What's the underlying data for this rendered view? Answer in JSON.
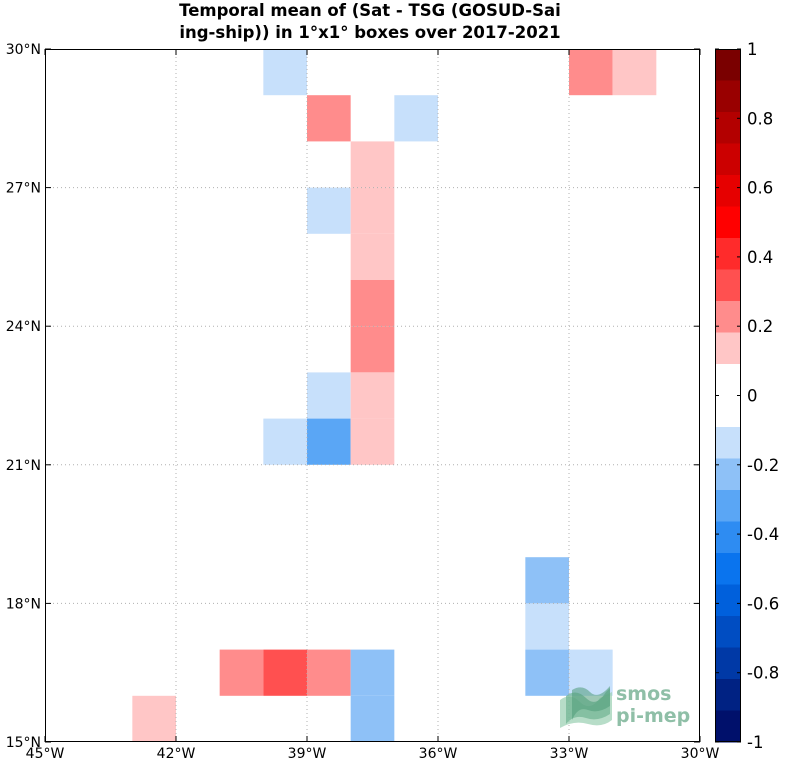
{
  "chart_data": {
    "type": "heatmap",
    "title_lines": [
      "Temporal mean of (Sat - TSG (GOSUD-Sai",
      "ing-ship)) in 1°x1° boxes over 2017-2021"
    ],
    "x_ticks": [
      {
        "value": -45,
        "label": "45°W"
      },
      {
        "value": -42,
        "label": "42°W"
      },
      {
        "value": -39,
        "label": "39°W"
      },
      {
        "value": -36,
        "label": "36°W"
      },
      {
        "value": -33,
        "label": "33°W"
      },
      {
        "value": -30,
        "label": "30°W"
      }
    ],
    "y_ticks": [
      {
        "value": 15,
        "label": "15°N"
      },
      {
        "value": 18,
        "label": "18°N"
      },
      {
        "value": 21,
        "label": "21°N"
      },
      {
        "value": 24,
        "label": "24°N"
      },
      {
        "value": 27,
        "label": "27°N"
      },
      {
        "value": 30,
        "label": "30°N"
      }
    ],
    "xlim": [
      -45,
      -30
    ],
    "ylim": [
      15,
      30
    ],
    "grid": true,
    "cells": [
      {
        "lon": -40,
        "lat": 29,
        "value": -0.15
      },
      {
        "lon": -33,
        "lat": 29,
        "value": 0.25
      },
      {
        "lon": -32,
        "lat": 29,
        "value": 0.15
      },
      {
        "lon": -39,
        "lat": 28,
        "value": 0.25
      },
      {
        "lon": -37,
        "lat": 28,
        "value": -0.15
      },
      {
        "lon": -38,
        "lat": 27,
        "value": 0.15
      },
      {
        "lon": -39,
        "lat": 26,
        "value": -0.15
      },
      {
        "lon": -38,
        "lat": 26,
        "value": 0.15
      },
      {
        "lon": -38,
        "lat": 25,
        "value": 0.15
      },
      {
        "lon": -38,
        "lat": 24,
        "value": 0.25
      },
      {
        "lon": -38,
        "lat": 23,
        "value": 0.25
      },
      {
        "lon": -39,
        "lat": 22,
        "value": -0.15
      },
      {
        "lon": -38,
        "lat": 22,
        "value": 0.15
      },
      {
        "lon": -40,
        "lat": 21,
        "value": -0.15
      },
      {
        "lon": -39,
        "lat": 21,
        "value": -0.3
      },
      {
        "lon": -38,
        "lat": 21,
        "value": 0.15
      },
      {
        "lon": -34,
        "lat": 18,
        "value": -0.25
      },
      {
        "lon": -34,
        "lat": 17,
        "value": -0.15
      },
      {
        "lon": -41,
        "lat": 16,
        "value": 0.25
      },
      {
        "lon": -40,
        "lat": 16,
        "value": 0.35
      },
      {
        "lon": -39,
        "lat": 16,
        "value": 0.25
      },
      {
        "lon": -38,
        "lat": 16,
        "value": -0.25
      },
      {
        "lon": -34,
        "lat": 16,
        "value": -0.25
      },
      {
        "lon": -33,
        "lat": 16,
        "value": -0.15
      },
      {
        "lon": -43,
        "lat": 15,
        "value": 0.15
      },
      {
        "lon": -38,
        "lat": 15,
        "value": -0.25
      }
    ],
    "colorbar": {
      "range": [
        -1,
        1
      ],
      "tick_values": [
        1,
        0.8,
        0.6,
        0.4,
        0.2,
        0,
        -0.2,
        -0.4,
        -0.6,
        -0.8,
        -1
      ],
      "tick_labels": [
        "1",
        "0.8",
        "0.6",
        "0.4",
        "0.2",
        "0",
        "-0.2",
        "-0.4",
        "-0.6",
        "-0.8",
        "-1"
      ],
      "colors_top_to_bottom": [
        "#7a0000",
        "#990000",
        "#b30000",
        "#cc0000",
        "#e60000",
        "#ff0000",
        "#ff2b2b",
        "#ff5050",
        "#ff8c8c",
        "#ffc6c6",
        "#ffffff",
        "#ffffff",
        "#c7e0fb",
        "#8ec1f7",
        "#5aa6f5",
        "#2e8cf2",
        "#0a74ee",
        "#0060dc",
        "#004dc2",
        "#0039a6",
        "#002283",
        "#00106b"
      ]
    }
  },
  "logo": {
    "line1": "smos",
    "line2": "pi-mep",
    "color": "#8fbfa7"
  }
}
